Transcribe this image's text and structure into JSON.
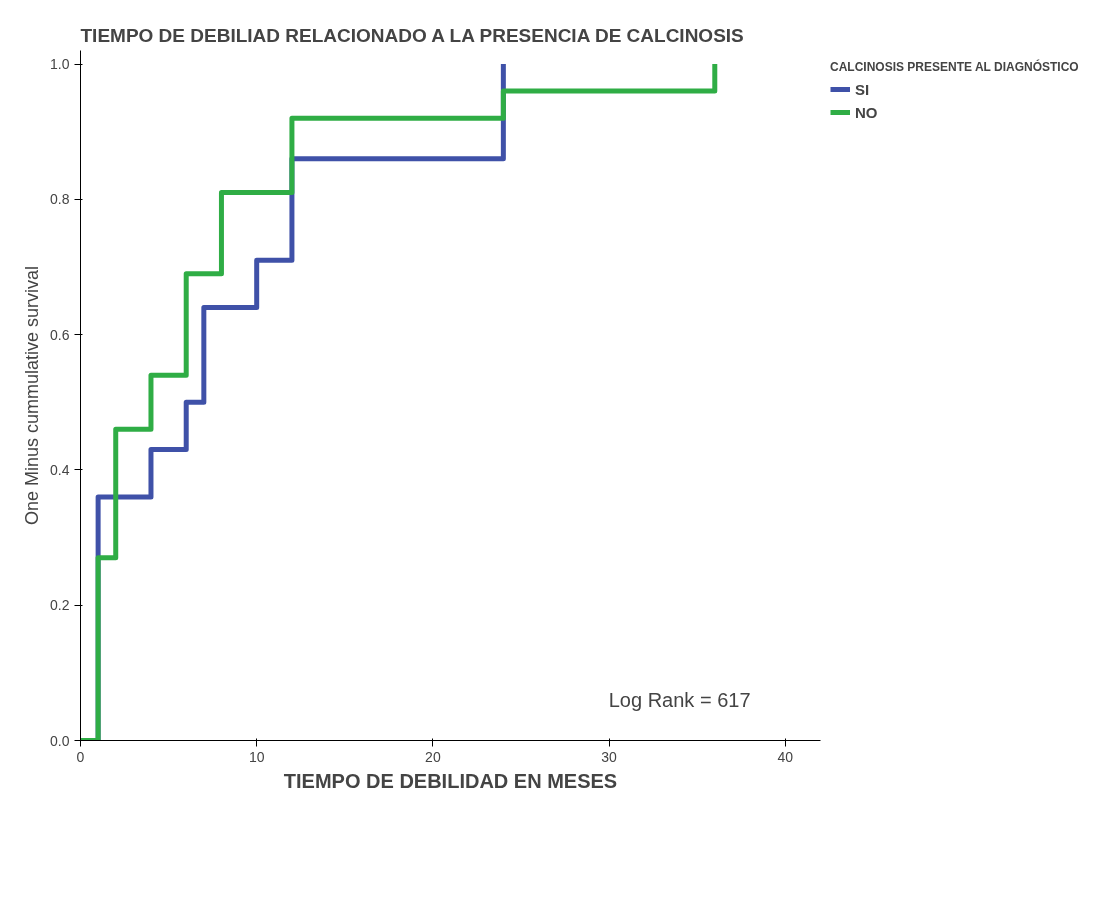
{
  "chart_data": {
    "type": "step",
    "title": "TIEMPO DE DEBILIAD RELACIONADO A LA PRESENCIA DE CALCINOSIS",
    "xlabel": "TIEMPO DE DEBILIDAD EN MESES",
    "ylabel": "One Minus cummulative survival",
    "legend_title": "CALCINOSIS PRESENTE AL DIAGNÓSTICO",
    "series": [
      {
        "name": "SI",
        "color": "#3f51a8",
        "x": [
          0,
          1,
          4,
          6,
          7,
          10,
          12,
          24
        ],
        "values": [
          0,
          0.36,
          0.43,
          0.5,
          0.64,
          0.71,
          0.86,
          1.0
        ]
      },
      {
        "name": "NO",
        "color": "#2fad45",
        "x": [
          0,
          1,
          2,
          4,
          6,
          8,
          12,
          24,
          36
        ],
        "values": [
          0,
          0.27,
          0.46,
          0.54,
          0.69,
          0.81,
          0.92,
          0.96,
          1.0
        ]
      }
    ],
    "xlim": [
      0,
      42
    ],
    "xticks": [
      0,
      10,
      20,
      30,
      40
    ],
    "ylim": [
      0,
      1.02
    ],
    "yticks": [
      {
        "value": 0,
        "label": "0.0"
      },
      {
        "value": 0.2,
        "label": "0.2"
      },
      {
        "value": 0.4,
        "label": "0.4"
      },
      {
        "value": 0.6,
        "label": "0.6"
      },
      {
        "value": 0.8,
        "label": "0.8"
      },
      {
        "value": 1,
        "label": "1.0"
      }
    ],
    "annotations": [
      "Log Rank = 617"
    ],
    "grid": false,
    "legend": "top right",
    "marker": "none",
    "line_style": "solid"
  }
}
